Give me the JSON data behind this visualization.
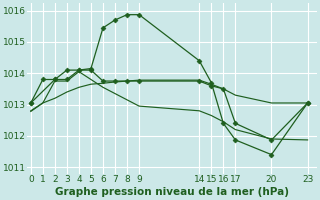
{
  "background_color": "#cce8e8",
  "grid_color": "#ffffff",
  "line_color": "#1f5f1f",
  "series": [
    {
      "x": [
        0,
        1,
        2,
        3,
        4,
        5,
        6,
        7,
        8,
        9,
        14,
        15,
        16,
        17,
        20,
        23
      ],
      "y": [
        1013.05,
        1013.8,
        1013.8,
        1014.1,
        1014.1,
        1014.15,
        1015.45,
        1015.7,
        1015.87,
        1015.87,
        1014.4,
        1013.7,
        1012.4,
        1011.87,
        1011.4,
        1013.05
      ],
      "has_markers": true,
      "linewidth": 0.9
    },
    {
      "x": [
        0,
        2,
        3,
        4,
        5,
        6,
        7,
        8,
        9,
        14,
        15,
        16,
        17,
        20,
        23
      ],
      "y": [
        1013.05,
        1013.8,
        1013.8,
        1014.1,
        1014.1,
        1013.75,
        1013.75,
        1013.75,
        1013.75,
        1013.75,
        1013.6,
        1013.5,
        1012.4,
        1011.87,
        1013.05
      ],
      "has_markers": true,
      "linewidth": 0.9
    },
    {
      "x": [
        0,
        1,
        2,
        3,
        4,
        5,
        6,
        7,
        8,
        9,
        14,
        15,
        16,
        17,
        20,
        23
      ],
      "y": [
        1012.8,
        1013.05,
        1013.2,
        1013.4,
        1013.55,
        1013.65,
        1013.68,
        1013.72,
        1013.75,
        1013.78,
        1013.78,
        1013.65,
        1013.5,
        1013.3,
        1013.05,
        1013.05
      ],
      "has_markers": false,
      "linewidth": 0.85
    },
    {
      "x": [
        0,
        1,
        2,
        3,
        4,
        5,
        6,
        7,
        8,
        9,
        14,
        15,
        16,
        17,
        20,
        23
      ],
      "y": [
        1012.78,
        1013.05,
        1013.75,
        1013.75,
        1014.05,
        1013.8,
        1013.55,
        1013.35,
        1013.15,
        1012.95,
        1012.8,
        1012.65,
        1012.45,
        1012.2,
        1011.9,
        1011.87
      ],
      "has_markers": false,
      "linewidth": 0.85
    }
  ],
  "xlim": [
    -0.3,
    23.8
  ],
  "ylim": [
    1010.78,
    1016.25
  ],
  "xticks": [
    0,
    1,
    2,
    3,
    4,
    5,
    6,
    7,
    8,
    9,
    14,
    15,
    16,
    17,
    20,
    23
  ],
  "yticks": [
    1011,
    1012,
    1013,
    1014,
    1015,
    1016
  ],
  "xlabel": "Graphe pression niveau de la mer (hPa)",
  "tick_fontsize": 6.5,
  "xlabel_fontsize": 7.5
}
